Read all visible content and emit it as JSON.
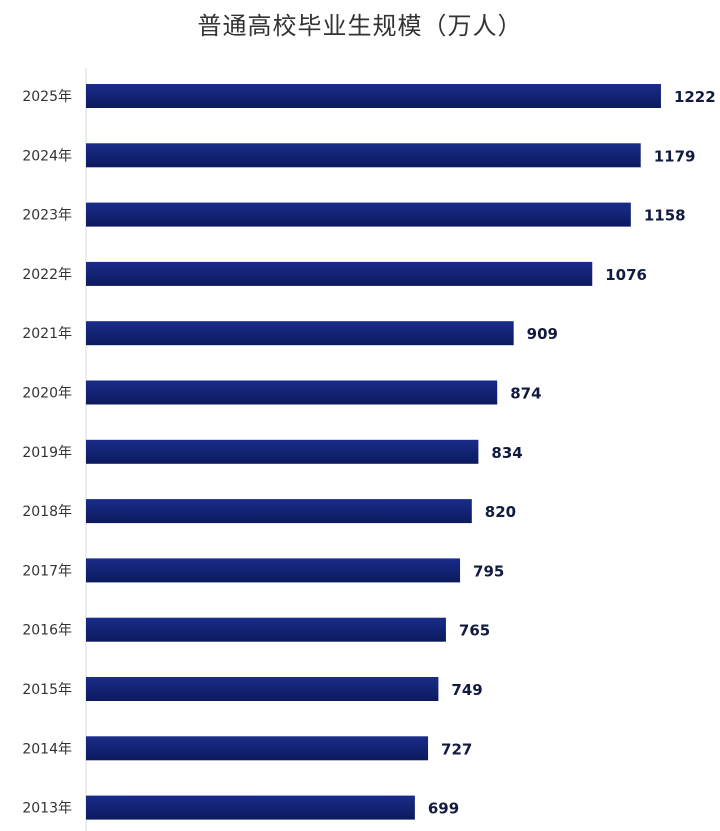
{
  "chart_data": {
    "type": "bar",
    "orientation": "horizontal",
    "title": "普通高校毕业生规模（万人）",
    "categories": [
      "2025年",
      "2024年",
      "2023年",
      "2022年",
      "2021年",
      "2020年",
      "2019年",
      "2018年",
      "2017年",
      "2016年",
      "2015年",
      "2014年",
      "2013年"
    ],
    "values": [
      1222,
      1179,
      1158,
      1076,
      909,
      874,
      834,
      820,
      795,
      765,
      749,
      727,
      699
    ],
    "data_labels": true,
    "grid": false,
    "legend": "none",
    "colors": {
      "bar_top": "#1a2c8a",
      "bar_bottom": "#0c1a5e",
      "axis": "#d9d9d9",
      "label": "#111b3f"
    }
  }
}
